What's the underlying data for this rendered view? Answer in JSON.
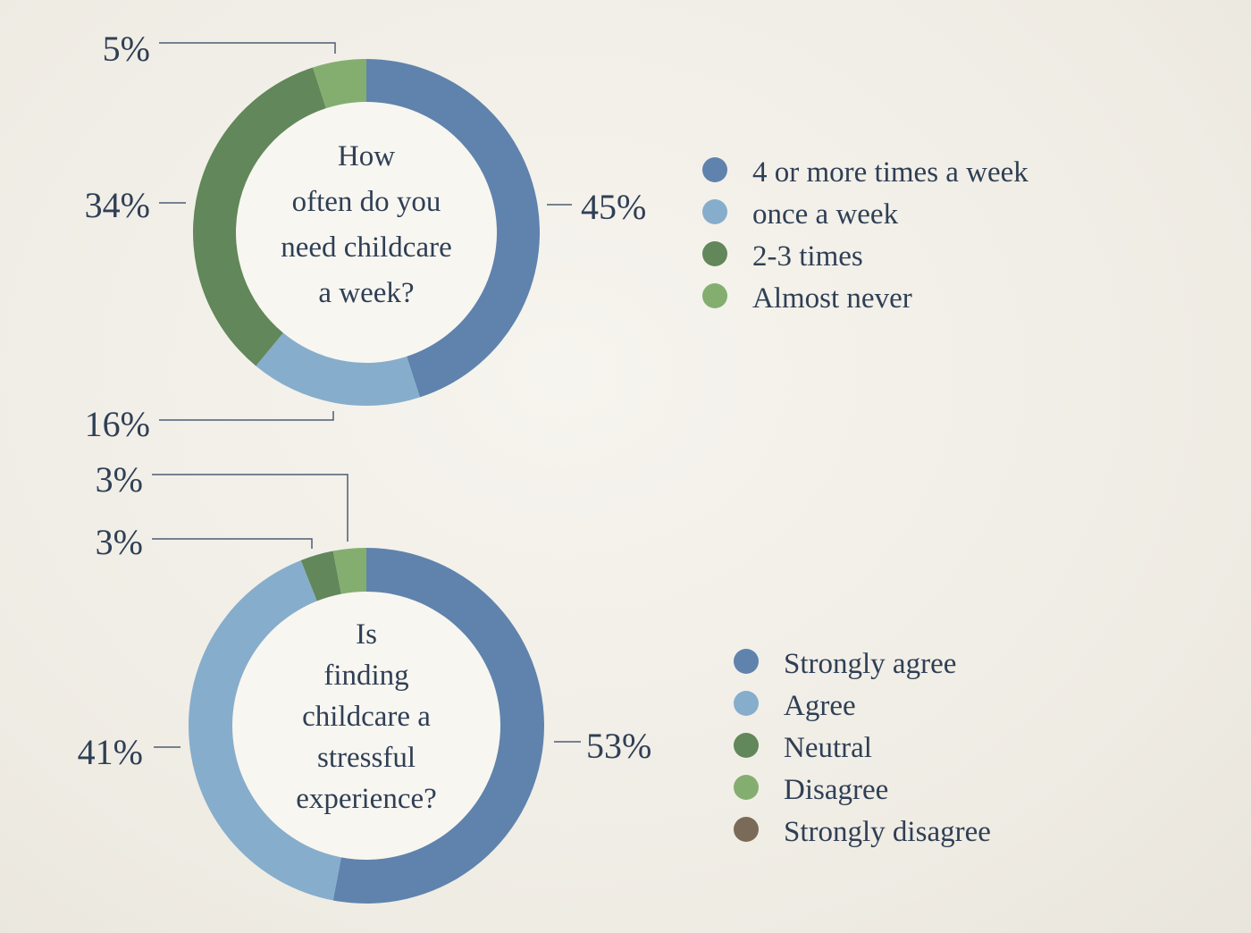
{
  "chart_data": [
    {
      "type": "donut",
      "title": "How often do you need childcare a week?",
      "title_lines": [
        "How",
        "often do you",
        "need childcare",
        "a week?"
      ],
      "legend_position": "right",
      "slices": [
        {
          "label": "4 or more times a week",
          "value": 45,
          "value_label": "45%",
          "color": "#5f83ad"
        },
        {
          "label": "once a week",
          "value": 16,
          "value_label": "16%",
          "color": "#86adcc"
        },
        {
          "label": "2-3 times",
          "value": 34,
          "value_label": "34%",
          "color": "#62875a"
        },
        {
          "label": "Almost never",
          "value": 5,
          "value_label": "5%",
          "color": "#84ae70"
        }
      ]
    },
    {
      "type": "donut",
      "title": "Is finding childcare a stressful experience?",
      "title_lines": [
        "Is",
        "finding",
        "childcare a",
        "stressful",
        "experience?"
      ],
      "legend_position": "right",
      "slices": [
        {
          "label": "Strongly agree",
          "value": 53,
          "value_label": "53%",
          "color": "#5f83ad"
        },
        {
          "label": "Agree",
          "value": 41,
          "value_label": "41%",
          "color": "#86adcc"
        },
        {
          "label": "Neutral",
          "value": 3,
          "value_label": "3%",
          "color": "#62875a"
        },
        {
          "label": "Disagree",
          "value": 3,
          "value_label": "3%",
          "color": "#84ae70"
        },
        {
          "label": "Strongly disagree",
          "value": 0,
          "value_label": "",
          "color": "#7a6a58"
        }
      ]
    }
  ]
}
